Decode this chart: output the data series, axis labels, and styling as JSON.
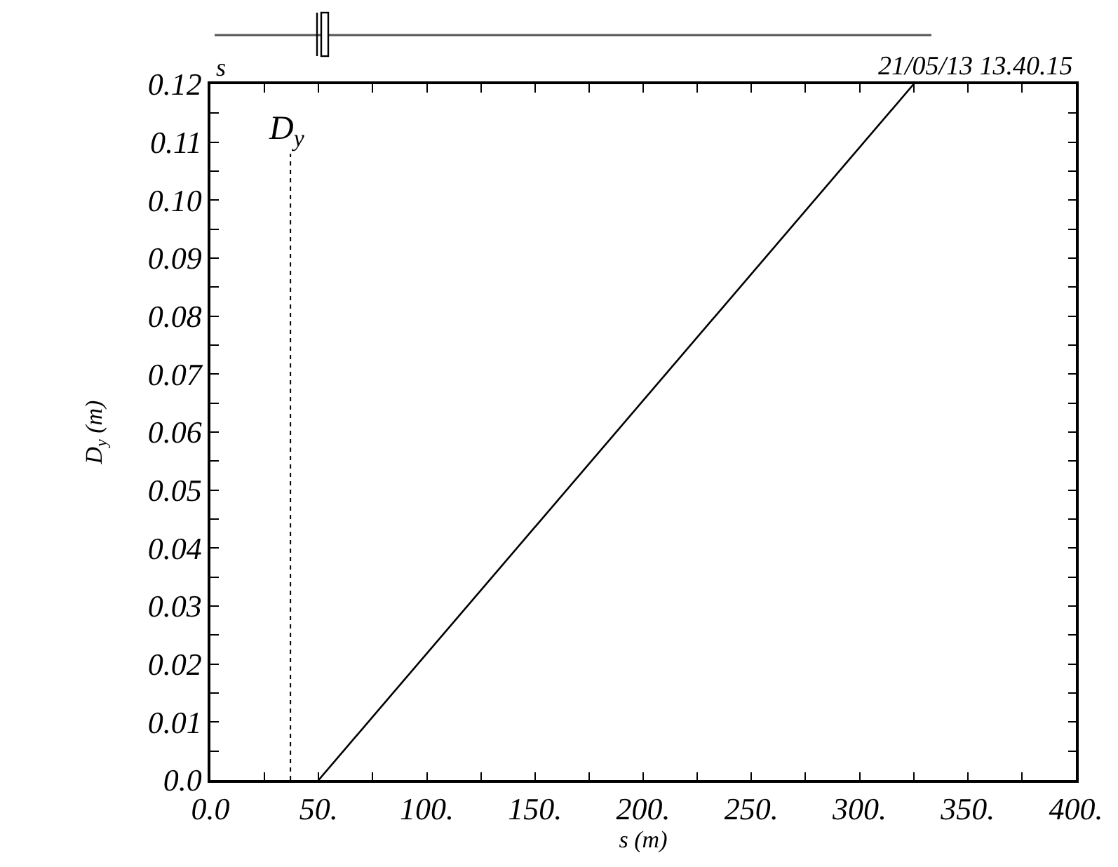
{
  "chart_data": {
    "type": "line",
    "ylabel": "D$_{y}$ (m)",
    "xlabel": "s (m)",
    "annotations": [
      "s",
      "21/05/13 13.40.15"
    ],
    "series": [
      {
        "color": "#000000",
        "x": [
          50,
          325
        ],
        "values": [
          0,
          0.12
        ]
      }
    ],
    "ref_lines": [
      {
        "axis": "x",
        "value": 37,
        "label": "D$_{y}$",
        "line_style": "dotted",
        "color": "#000000"
      }
    ],
    "xlim": [
      0,
      400
    ],
    "ylim": [
      0,
      0.12
    ],
    "xticks": [
      {
        "value": 0,
        "label": "0.0"
      },
      {
        "value": 25,
        "label": null
      },
      {
        "value": 50,
        "label": "50."
      },
      {
        "value": 75,
        "label": null
      },
      {
        "value": 100,
        "label": "100."
      },
      {
        "value": 125,
        "label": null
      },
      {
        "value": 150,
        "label": "150."
      },
      {
        "value": 175,
        "label": null
      },
      {
        "value": 200,
        "label": "200."
      },
      {
        "value": 225,
        "label": null
      },
      {
        "value": 250,
        "label": "250."
      },
      {
        "value": 275,
        "label": null
      },
      {
        "value": 300,
        "label": "300."
      },
      {
        "value": 325,
        "label": null
      },
      {
        "value": 350,
        "label": "350."
      },
      {
        "value": 375,
        "label": null
      },
      {
        "value": 400,
        "label": "400."
      }
    ],
    "yticks": [
      {
        "value": 0,
        "label": "0.0"
      },
      {
        "value": 0.005,
        "label": null
      },
      0.01,
      {
        "value": 0.015,
        "label": null
      },
      0.02,
      {
        "value": 0.025,
        "label": null
      },
      0.03,
      {
        "value": 0.035,
        "label": null
      },
      0.04,
      {
        "value": 0.045,
        "label": null
      },
      0.05,
      {
        "value": 0.055,
        "label": null
      },
      0.06,
      {
        "value": 0.065,
        "label": null
      },
      0.07,
      {
        "value": 0.075,
        "label": null
      },
      0.08,
      {
        "value": 0.085,
        "label": null
      },
      0.09,
      {
        "value": 0.095,
        "label": null
      },
      {
        "value": 0.1,
        "label": "0.10"
      },
      {
        "value": 0.105,
        "label": null
      },
      0.11,
      {
        "value": 0.115,
        "label": null
      },
      0.12
    ],
    "marker": "none",
    "line_style": "solid"
  }
}
